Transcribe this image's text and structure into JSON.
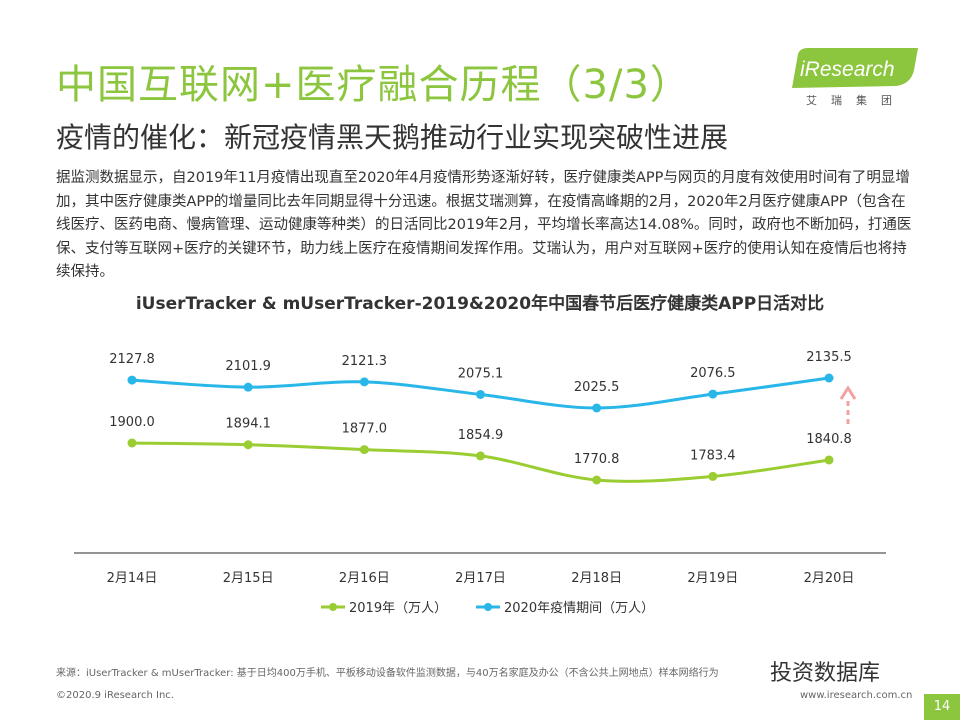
{
  "header": {
    "title": "中国互联网+医疗融合历程（3/3）",
    "subtitle": "疫情的催化：新冠疫情黑天鹅推动行业实现突破性进展",
    "logo_text": "iResearch",
    "logo_cn": "艾瑞集团"
  },
  "body_text": "据监测数据显示，自2019年11月疫情出现直至2020年4月疫情形势逐渐好转，医疗健康类APP与网页的月度有效使用时间有了明显增加，其中医疗健康类APP的增量同比去年同期显得十分迅速。根据艾瑞测算，在疫情高峰期的2月，2020年2月医疗健康APP（包含在线医疗、医药电商、慢病管理、运动健康等种类）的日活同比2019年2月，平均增长率高达14.08%。同时，政府也不断加码，打通医保、支付等互联网+医疗的关键环节，助力线上医疗在疫情期间发挥作用。艾瑞认为，用户对互联网+医疗的使用认知在疫情后也将持续保持。",
  "chart_data": {
    "type": "line",
    "title": "iUserTracker & mUserTracker-2019&2020年中国春节后医疗健康类APP日活对比",
    "categories": [
      "2月14日",
      "2月15日",
      "2月16日",
      "2月17日",
      "2月18日",
      "2月19日",
      "2月20日"
    ],
    "series": [
      {
        "name": "2019年（万人）",
        "color": "#9acd32",
        "values": [
          1900.0,
          1894.1,
          1877.0,
          1854.9,
          1770.8,
          1783.4,
          1840.8
        ],
        "labels": [
          "1900.0",
          "1894.1",
          "1877.0",
          "1854.9",
          "1770.8",
          "1783.4",
          "1840.8"
        ]
      },
      {
        "name": "2020年疫情期间（万人）",
        "color": "#29b6e8",
        "values": [
          2127.8,
          2101.9,
          2121.3,
          2075.1,
          2025.5,
          2076.5,
          2135.5
        ],
        "labels": [
          "2127.8",
          "2101.9",
          "2121.3",
          "2075.1",
          "2025.5",
          "2076.5",
          "2135.5"
        ]
      }
    ],
    "legend_position": "bottom",
    "grid": false,
    "annotation": "red dashed up-arrow next to 2月20日 2020 value",
    "arrow_color": "#f4a0a0"
  },
  "footer": {
    "source": "来源：iUserTracker & mUserTracker: 基于日均400万手机、平板移动设备软件监测数据，与40万名家庭及办公（不含公共上网地点）样本网络行为",
    "copyright": "©2020.9 iResearch Inc.",
    "url": "www.iresearch.com.cn",
    "watermark": "投资数据库",
    "page_number": "14"
  }
}
